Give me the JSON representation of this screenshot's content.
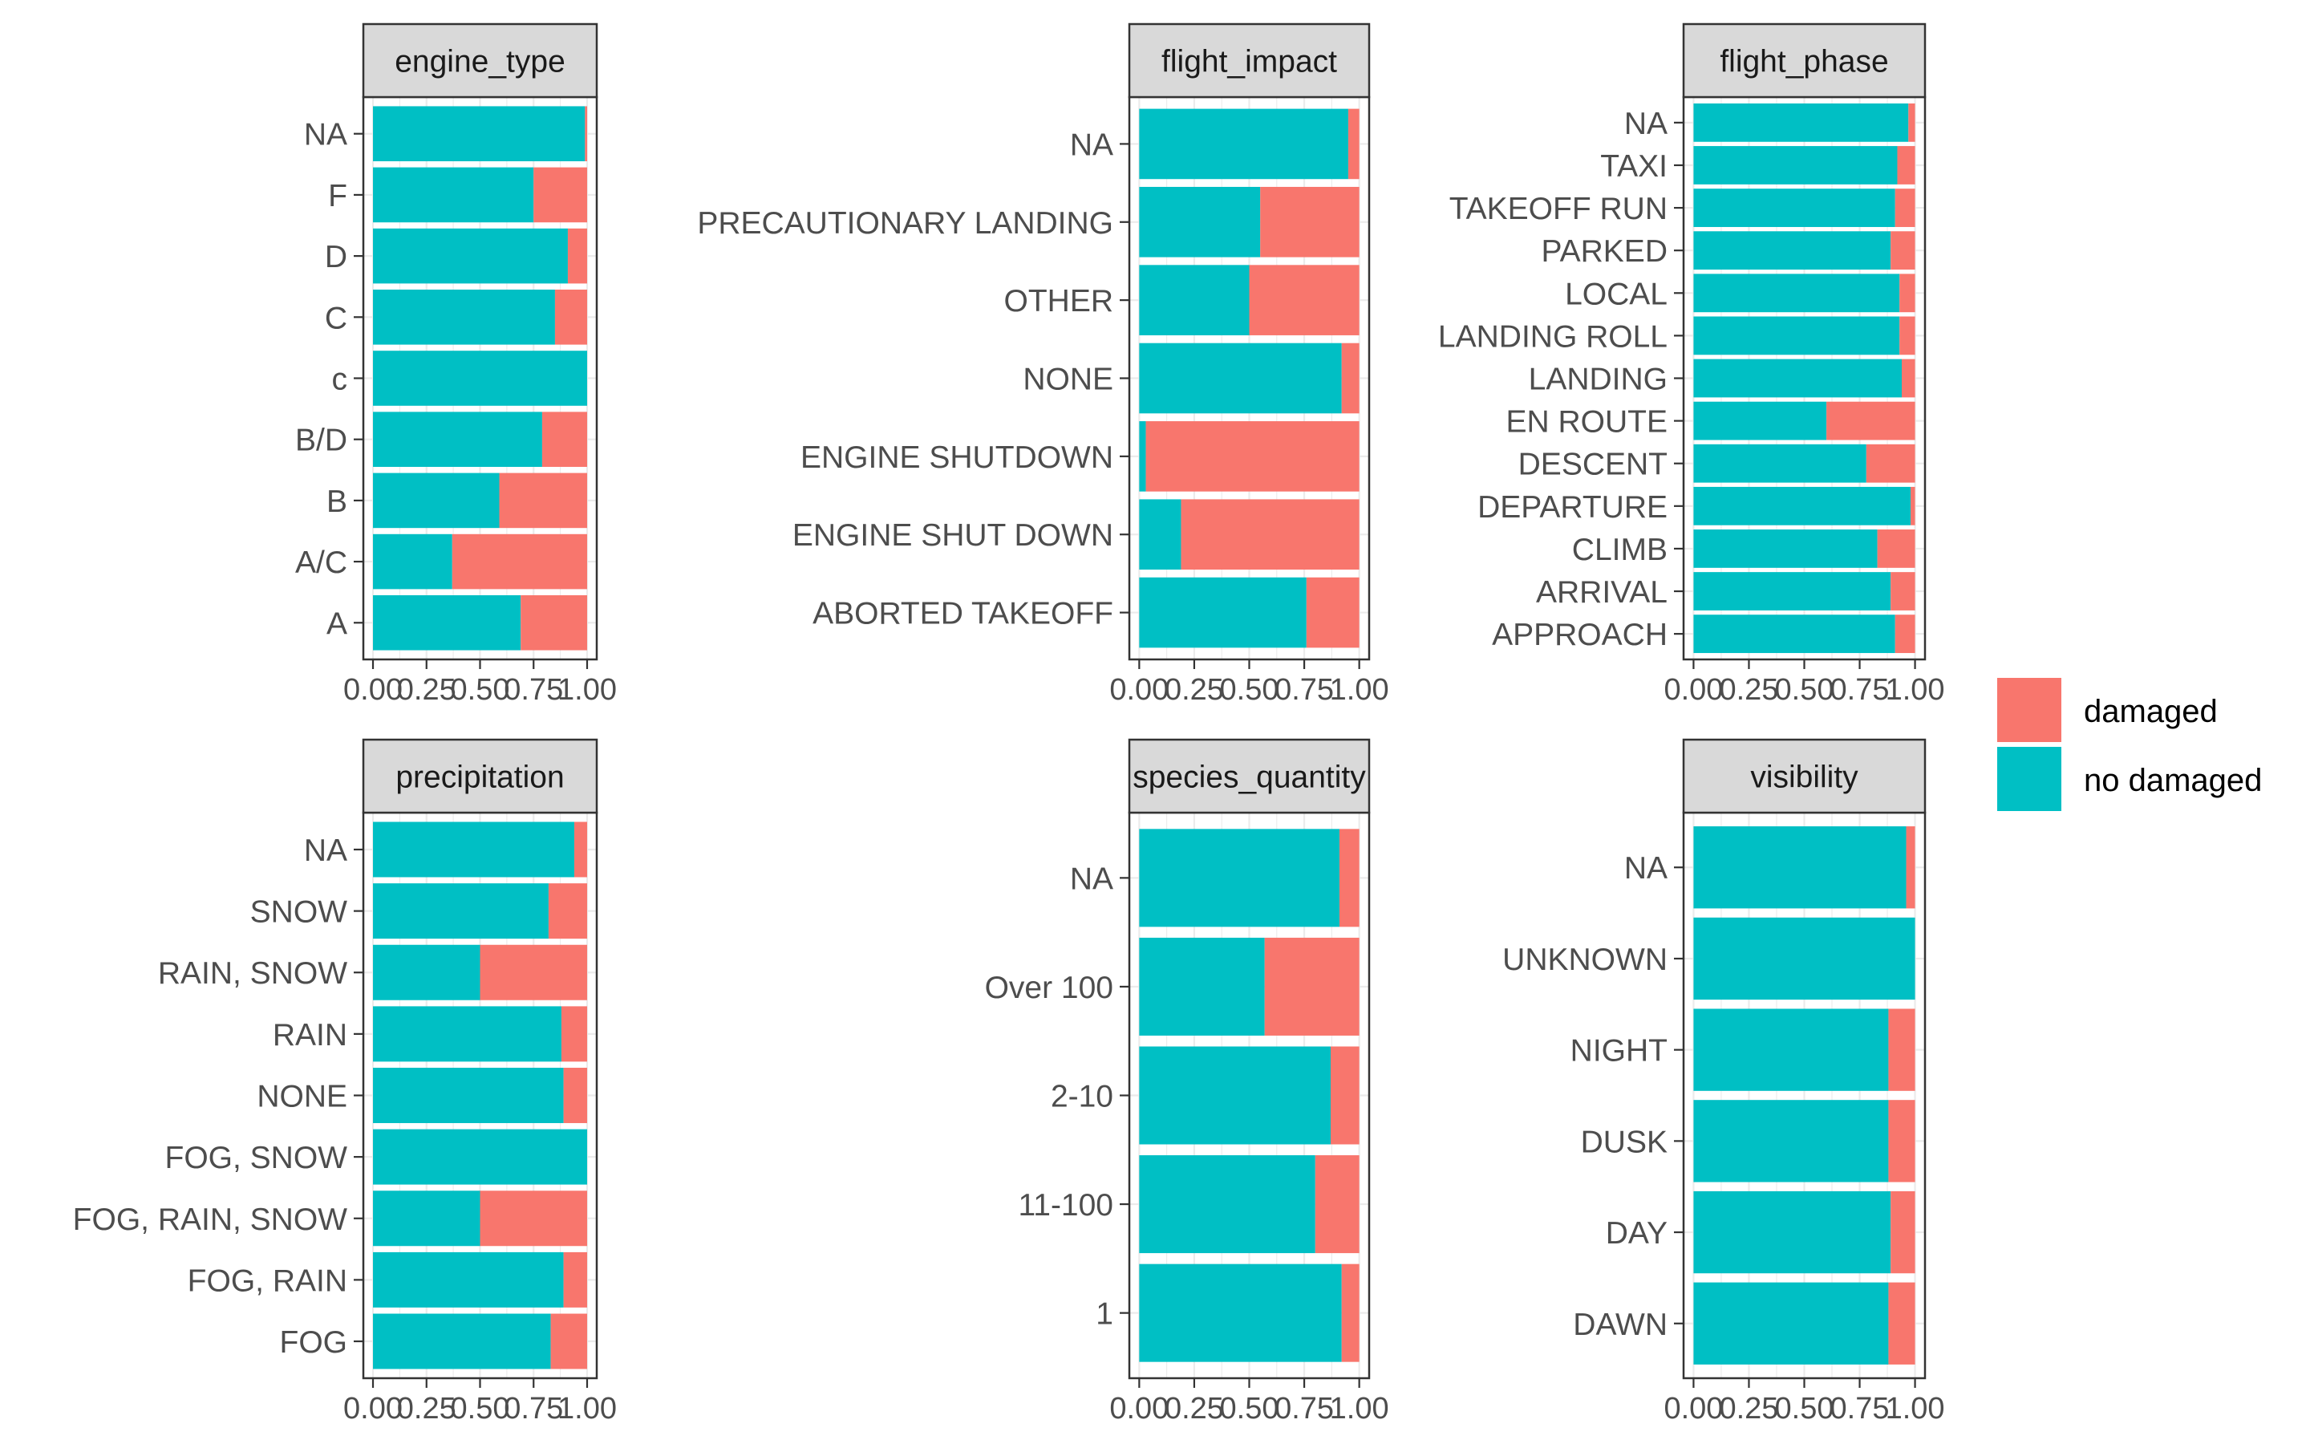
{
  "colors": {
    "damaged": "#F8766D",
    "no_damaged": "#00BFC4",
    "strip_fill": "#D9D9D9",
    "axis": "#333333",
    "grid": "#EBEBEB"
  },
  "legend": {
    "entries": [
      {
        "label": "damaged",
        "color": "#F8766D"
      },
      {
        "label": "no damaged",
        "color": "#00BFC4"
      }
    ]
  },
  "chart_data": [
    {
      "type": "bar",
      "orientation": "horizontal",
      "stacked": "fill",
      "facet": "engine_type",
      "categories": [
        "NA",
        "F",
        "D",
        "C",
        "c",
        "B/D",
        "B",
        "A/C",
        "A"
      ],
      "series": [
        {
          "name": "no damaged",
          "values": [
            0.99,
            0.75,
            0.91,
            0.85,
            1.0,
            0.79,
            0.59,
            0.37,
            0.69
          ]
        },
        {
          "name": "damaged",
          "values": [
            0.01,
            0.25,
            0.09,
            0.15,
            0.0,
            0.21,
            0.41,
            0.63,
            0.31
          ]
        }
      ],
      "xlim": [
        0,
        1
      ],
      "x_ticks": [
        "0.00",
        "0.25",
        "0.50",
        "0.75",
        "1.00"
      ]
    },
    {
      "type": "bar",
      "orientation": "horizontal",
      "stacked": "fill",
      "facet": "flight_impact",
      "categories": [
        "NA",
        "PRECAUTIONARY LANDING",
        "OTHER",
        "NONE",
        "ENGINE SHUTDOWN",
        "ENGINE SHUT DOWN",
        "ABORTED TAKEOFF"
      ],
      "series": [
        {
          "name": "no damaged",
          "values": [
            0.95,
            0.55,
            0.5,
            0.92,
            0.03,
            0.19,
            0.76
          ]
        },
        {
          "name": "damaged",
          "values": [
            0.05,
            0.45,
            0.5,
            0.08,
            0.97,
            0.81,
            0.24
          ]
        }
      ],
      "xlim": [
        0,
        1
      ],
      "x_ticks": [
        "0.00",
        "0.25",
        "0.50",
        "0.75",
        "1.00"
      ]
    },
    {
      "type": "bar",
      "orientation": "horizontal",
      "stacked": "fill",
      "facet": "flight_phase",
      "categories": [
        "NA",
        "TAXI",
        "TAKEOFF RUN",
        "PARKED",
        "LOCAL",
        "LANDING ROLL",
        "LANDING",
        "EN ROUTE",
        "DESCENT",
        "DEPARTURE",
        "CLIMB",
        "ARRIVAL",
        "APPROACH"
      ],
      "series": [
        {
          "name": "no damaged",
          "values": [
            0.97,
            0.92,
            0.91,
            0.89,
            0.93,
            0.93,
            0.94,
            0.6,
            0.78,
            0.98,
            0.83,
            0.89,
            0.91
          ]
        },
        {
          "name": "damaged",
          "values": [
            0.03,
            0.08,
            0.09,
            0.11,
            0.07,
            0.07,
            0.06,
            0.4,
            0.22,
            0.02,
            0.17,
            0.11,
            0.09
          ]
        }
      ],
      "xlim": [
        0,
        1
      ],
      "x_ticks": [
        "0.00",
        "0.25",
        "0.50",
        "0.75",
        "1.00"
      ]
    },
    {
      "type": "bar",
      "orientation": "horizontal",
      "stacked": "fill",
      "facet": "precipitation",
      "categories": [
        "NA",
        "SNOW",
        "RAIN, SNOW",
        "RAIN",
        "NONE",
        "FOG, SNOW",
        "FOG, RAIN, SNOW",
        "FOG, RAIN",
        "FOG"
      ],
      "series": [
        {
          "name": "no damaged",
          "values": [
            0.94,
            0.82,
            0.5,
            0.88,
            0.89,
            1.0,
            0.5,
            0.89,
            0.83
          ]
        },
        {
          "name": "damaged",
          "values": [
            0.06,
            0.18,
            0.5,
            0.12,
            0.11,
            0.0,
            0.5,
            0.11,
            0.17
          ]
        }
      ],
      "xlim": [
        0,
        1
      ],
      "x_ticks": [
        "0.00",
        "0.25",
        "0.50",
        "0.75",
        "1.00"
      ]
    },
    {
      "type": "bar",
      "orientation": "horizontal",
      "stacked": "fill",
      "facet": "species_quantity",
      "categories": [
        "NA",
        "Over 100",
        "2-10",
        "11-100",
        "1"
      ],
      "series": [
        {
          "name": "no damaged",
          "values": [
            0.91,
            0.57,
            0.87,
            0.8,
            0.92
          ]
        },
        {
          "name": "damaged",
          "values": [
            0.09,
            0.43,
            0.13,
            0.2,
            0.08
          ]
        }
      ],
      "xlim": [
        0,
        1
      ],
      "x_ticks": [
        "0.00",
        "0.25",
        "0.50",
        "0.75",
        "1.00"
      ]
    },
    {
      "type": "bar",
      "orientation": "horizontal",
      "stacked": "fill",
      "facet": "visibility",
      "categories": [
        "NA",
        "UNKNOWN",
        "NIGHT",
        "DUSK",
        "DAY",
        "DAWN"
      ],
      "series": [
        {
          "name": "no damaged",
          "values": [
            0.96,
            1.0,
            0.88,
            0.88,
            0.89,
            0.88
          ]
        },
        {
          "name": "damaged",
          "values": [
            0.04,
            0.0,
            0.12,
            0.12,
            0.11,
            0.12
          ]
        }
      ],
      "xlim": [
        0,
        1
      ],
      "x_ticks": [
        "0.00",
        "0.25",
        "0.50",
        "0.75",
        "1.00"
      ]
    }
  ]
}
